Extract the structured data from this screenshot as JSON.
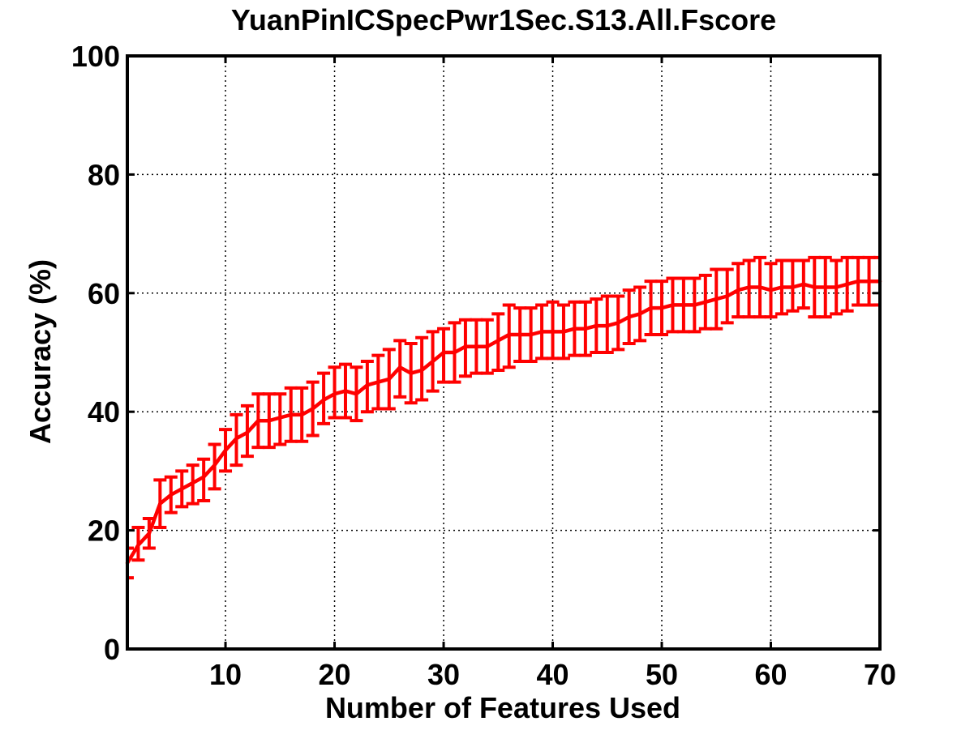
{
  "chart_data": {
    "type": "line",
    "title": "YuanPinICSpecPwr1Sec.S13.All.Fscore",
    "xlabel": "Number of Features Used",
    "ylabel": "Accuracy (%)",
    "xlim": [
      1,
      70
    ],
    "ylim": [
      0,
      100
    ],
    "xticks": [
      10,
      20,
      30,
      40,
      50,
      60,
      70
    ],
    "yticks": [
      0,
      20,
      40,
      60,
      80,
      100
    ],
    "grid": true,
    "error_bars": true,
    "color": "#ff0000",
    "series": [
      {
        "x": [
          1,
          2,
          3,
          4,
          5,
          6,
          7,
          8,
          9,
          10,
          11,
          12,
          13,
          14,
          15,
          16,
          17,
          18,
          19,
          20,
          21,
          22,
          23,
          24,
          25,
          26,
          27,
          28,
          29,
          30,
          31,
          32,
          33,
          34,
          35,
          36,
          37,
          38,
          39,
          40,
          41,
          42,
          43,
          44,
          45,
          46,
          47,
          48,
          49,
          50,
          51,
          52,
          53,
          54,
          55,
          56,
          57,
          58,
          59,
          60,
          61,
          62,
          63,
          64,
          65,
          66,
          67,
          68,
          69,
          70
        ],
        "mean": [
          14.5,
          17.5,
          19.5,
          24.5,
          26.0,
          27.0,
          28.0,
          29.0,
          31.0,
          33.5,
          35.5,
          36.5,
          38.5,
          38.5,
          39.0,
          39.5,
          39.5,
          40.5,
          42.0,
          43.0,
          43.5,
          43.0,
          44.5,
          45.0,
          45.5,
          47.5,
          46.5,
          47.0,
          48.5,
          50.0,
          50.0,
          51.0,
          51.0,
          51.0,
          52.0,
          53.0,
          53.0,
          53.0,
          53.5,
          53.5,
          53.5,
          54.0,
          54.0,
          54.5,
          54.5,
          55.0,
          56.0,
          56.5,
          57.5,
          57.5,
          58.0,
          58.0,
          58.0,
          58.5,
          59.0,
          59.5,
          60.5,
          61.0,
          61.0,
          60.5,
          61.0,
          61.0,
          61.5,
          61.0,
          61.0,
          61.0,
          61.5,
          62.0,
          62.0,
          62.0
        ],
        "lower": [
          12.0,
          15.0,
          17.0,
          20.5,
          23.0,
          24.0,
          24.5,
          25.0,
          27.0,
          30.0,
          31.0,
          32.5,
          34.0,
          34.0,
          34.5,
          35.0,
          35.0,
          36.0,
          38.0,
          39.0,
          39.0,
          38.5,
          40.0,
          40.5,
          40.5,
          42.5,
          41.5,
          42.0,
          43.5,
          45.0,
          45.0,
          46.0,
          46.5,
          46.5,
          47.0,
          47.5,
          48.5,
          48.5,
          49.0,
          49.0,
          49.0,
          49.5,
          49.5,
          50.0,
          50.0,
          50.5,
          51.5,
          52.0,
          53.0,
          53.0,
          53.5,
          53.5,
          53.5,
          54.0,
          54.0,
          55.0,
          56.0,
          56.0,
          56.0,
          56.0,
          56.5,
          57.0,
          57.5,
          56.0,
          56.0,
          56.5,
          57.0,
          58.0,
          58.0,
          58.0
        ],
        "upper": [
          17.0,
          20.5,
          22.0,
          28.5,
          29.0,
          30.0,
          31.0,
          32.0,
          34.5,
          37.0,
          39.5,
          41.0,
          43.0,
          43.0,
          43.0,
          44.0,
          44.0,
          45.0,
          46.5,
          47.5,
          48.0,
          47.5,
          48.5,
          49.5,
          50.5,
          52.0,
          51.5,
          52.5,
          53.5,
          54.0,
          55.0,
          55.5,
          55.5,
          55.5,
          56.5,
          58.0,
          57.5,
          57.5,
          58.0,
          58.5,
          58.0,
          58.5,
          58.5,
          59.0,
          59.5,
          59.5,
          60.5,
          61.0,
          62.0,
          62.0,
          62.5,
          62.5,
          62.5,
          63.0,
          64.0,
          64.0,
          65.0,
          65.5,
          66.0,
          65.0,
          65.5,
          65.5,
          65.5,
          66.0,
          66.0,
          65.5,
          66.0,
          66.0,
          66.0,
          66.0
        ]
      }
    ]
  }
}
